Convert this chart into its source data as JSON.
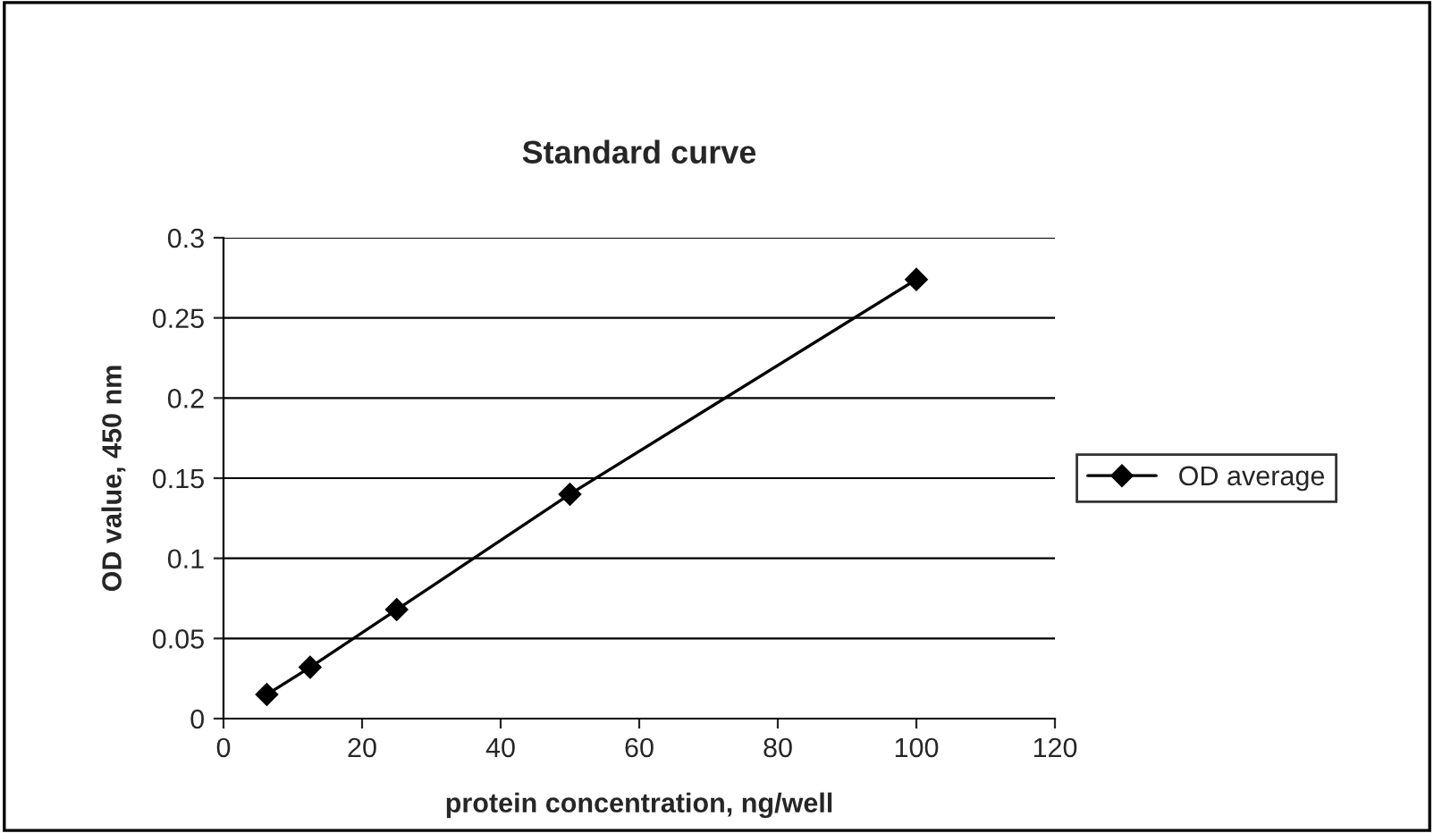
{
  "chart_data": {
    "type": "line",
    "title": "Standard curve",
    "xlabel": "protein concentration, ng/well",
    "ylabel": "OD value, 450 nm",
    "x": [
      6.25,
      12.5,
      25,
      50,
      100
    ],
    "series": [
      {
        "name": "OD average",
        "color": "#000000",
        "values": [
          0.015,
          0.032,
          0.068,
          0.14,
          0.274
        ]
      }
    ],
    "xlim": [
      0,
      120
    ],
    "xticks": [
      0,
      20,
      40,
      60,
      80,
      100,
      120
    ],
    "ylim": [
      0,
      0.3
    ],
    "yticks": [
      0,
      0.05,
      0.1,
      0.15,
      0.2,
      0.25,
      0.3
    ],
    "grid": "y",
    "legend": "right",
    "marker": "diamond",
    "line_style": "solid"
  }
}
